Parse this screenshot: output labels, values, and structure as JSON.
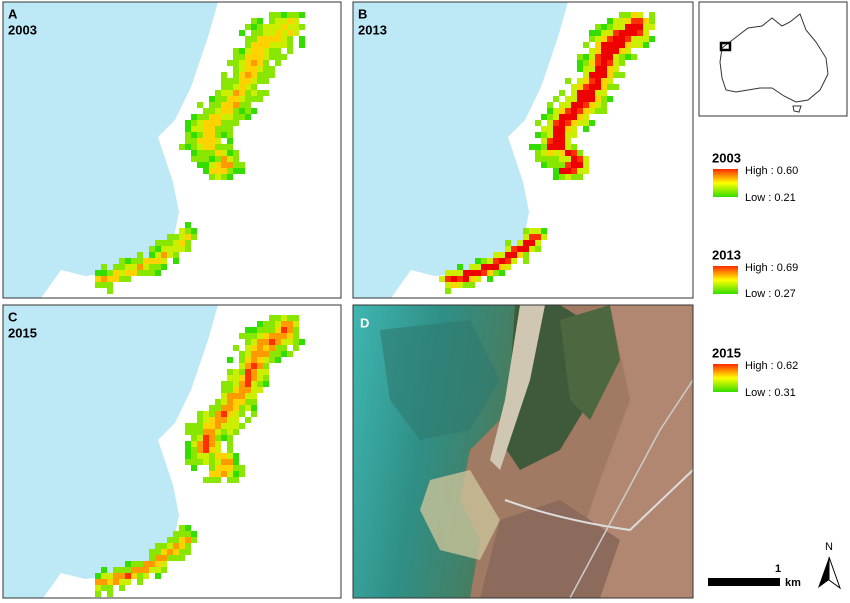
{
  "panels": [
    {
      "label": "A",
      "year": "2003"
    },
    {
      "label": "B",
      "year": "2013"
    },
    {
      "label": "C",
      "year": "2015"
    },
    {
      "label": "D"
    }
  ],
  "legends": [
    {
      "title": "2003",
      "high": "High : 0.60",
      "low": "Low : 0.21"
    },
    {
      "title": "2013",
      "high": "High : 0.69",
      "low": "Low : 0.27"
    },
    {
      "title": "2015",
      "high": "High : 0.62",
      "low": "Low : 0.31"
    }
  ],
  "scale_bar": {
    "label": "1",
    "unit": "km"
  },
  "north_arrow": {
    "label": "N"
  }
}
